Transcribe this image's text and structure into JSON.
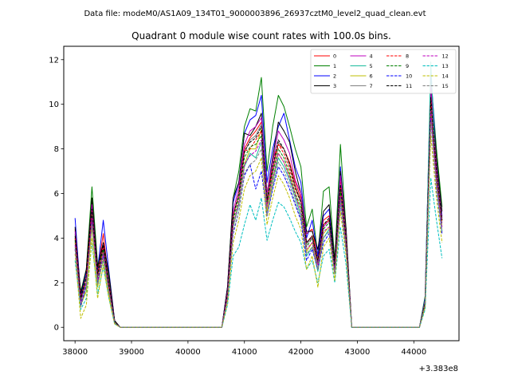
{
  "figure": {
    "suptitle": "Data file: modeM0/AS1A09_134T01_9000003896_26937cztM0_level2_quad_clean.evt"
  },
  "chart_data": {
    "type": "line",
    "title": "Quadrant 0 module wise count rates with 100.0s bins.",
    "xlabel": "",
    "ylabel": "",
    "x_offset_label": "+3.383e8",
    "xlim": [
      37800,
      44800
    ],
    "ylim": [
      -0.6,
      12.6
    ],
    "x_ticks": [
      38000,
      39000,
      40000,
      41000,
      42000,
      43000,
      44000
    ],
    "y_ticks": [
      0,
      2,
      4,
      6,
      8,
      10,
      12
    ],
    "grid": false,
    "legend_position": "top-right",
    "x": [
      38000,
      38100,
      38200,
      38300,
      38400,
      38500,
      38600,
      38700,
      38800,
      38900,
      39000,
      39100,
      39200,
      39300,
      39400,
      39500,
      39600,
      39700,
      39800,
      39900,
      40000,
      40100,
      40200,
      40300,
      40400,
      40500,
      40600,
      40700,
      40800,
      40900,
      41000,
      41100,
      41200,
      41300,
      41400,
      41500,
      41600,
      41700,
      41800,
      41900,
      42000,
      42100,
      42200,
      42300,
      42400,
      42500,
      42600,
      42700,
      42800,
      42900,
      43000,
      43100,
      43200,
      43300,
      43400,
      43500,
      43600,
      43700,
      43800,
      43900,
      44000,
      44100,
      44200,
      44300,
      44400,
      44500
    ],
    "series": [
      {
        "name": "0",
        "color": "#ff0000",
        "dash": false,
        "values": [
          4.4,
          1.5,
          2.0,
          5.8,
          2.5,
          4.2,
          2.0,
          0.3,
          0,
          0,
          0,
          0,
          0,
          0,
          0,
          0,
          0,
          0,
          0,
          0,
          0,
          0,
          0,
          0,
          0,
          0,
          0,
          1.5,
          5.0,
          6.0,
          8.0,
          8.5,
          8.8,
          9.2,
          5.5,
          7.5,
          8.2,
          8.0,
          7.4,
          6.5,
          5.8,
          4.2,
          4.4,
          3.0,
          4.8,
          5.0,
          2.8,
          6.5,
          4.0,
          0,
          0,
          0,
          0,
          0,
          0,
          0,
          0,
          0,
          0,
          0,
          0,
          0,
          1.2,
          10.5,
          7.0,
          4.8
        ]
      },
      {
        "name": "1",
        "color": "#008000",
        "dash": false,
        "values": [
          4.2,
          1.6,
          2.6,
          6.3,
          2.8,
          3.5,
          2.2,
          0.3,
          0,
          0,
          0,
          0,
          0,
          0,
          0,
          0,
          0,
          0,
          0,
          0,
          0,
          0,
          0,
          0,
          0,
          0,
          0,
          1.8,
          5.8,
          7.0,
          9.0,
          9.8,
          9.7,
          11.2,
          7.0,
          9.0,
          10.4,
          9.9,
          9.0,
          8.0,
          7.2,
          4.5,
          5.3,
          3.2,
          6.1,
          6.3,
          3.0,
          8.2,
          4.4,
          0,
          0,
          0,
          0,
          0,
          0,
          0,
          0,
          0,
          0,
          0,
          0,
          0,
          1.4,
          11.2,
          8.0,
          5.4
        ]
      },
      {
        "name": "2",
        "color": "#0000ff",
        "dash": false,
        "values": [
          4.9,
          1.4,
          2.5,
          5.5,
          2.6,
          4.8,
          2.5,
          0.3,
          0,
          0,
          0,
          0,
          0,
          0,
          0,
          0,
          0,
          0,
          0,
          0,
          0,
          0,
          0,
          0,
          0,
          0,
          0,
          1.8,
          5.6,
          6.5,
          8.7,
          9.3,
          9.5,
          10.4,
          6.5,
          8.0,
          9.0,
          9.6,
          8.4,
          7.2,
          6.5,
          4.0,
          4.8,
          3.2,
          5.0,
          5.3,
          2.8,
          7.2,
          4.2,
          0,
          0,
          0,
          0,
          0,
          0,
          0,
          0,
          0,
          0,
          0,
          0,
          0,
          1.3,
          11.5,
          7.5,
          5.0
        ]
      },
      {
        "name": "3",
        "color": "#000000",
        "dash": false,
        "values": [
          4.5,
          1.5,
          2.6,
          5.8,
          2.7,
          3.8,
          2.4,
          0.3,
          0,
          0,
          0,
          0,
          0,
          0,
          0,
          0,
          0,
          0,
          0,
          0,
          0,
          0,
          0,
          0,
          0,
          0,
          0,
          1.8,
          5.8,
          6.5,
          8.7,
          8.6,
          9.0,
          9.6,
          6.0,
          7.6,
          9.2,
          8.8,
          8.3,
          7.0,
          6.0,
          4.3,
          4.3,
          3.5,
          5.2,
          5.5,
          3.0,
          7.0,
          4.4,
          0,
          0,
          0,
          0,
          0,
          0,
          0,
          0,
          0,
          0,
          0,
          0,
          0,
          1.2,
          10.8,
          7.6,
          5.2
        ]
      },
      {
        "name": "4",
        "color": "#bf00bf",
        "dash": false,
        "values": [
          4.3,
          1.3,
          2.0,
          5.5,
          2.3,
          3.7,
          2.0,
          0.25,
          0,
          0,
          0,
          0,
          0,
          0,
          0,
          0,
          0,
          0,
          0,
          0,
          0,
          0,
          0,
          0,
          0,
          0,
          0,
          1.6,
          5.2,
          6.3,
          8.2,
          8.8,
          9.0,
          9.4,
          6.0,
          7.4,
          8.8,
          8.4,
          7.8,
          6.6,
          6.0,
          3.8,
          4.0,
          2.8,
          4.5,
          4.8,
          2.6,
          6.8,
          4.1,
          0,
          0,
          0,
          0,
          0,
          0,
          0,
          0,
          0,
          0,
          0,
          0,
          0,
          1.1,
          10.8,
          7.2,
          4.9
        ]
      },
      {
        "name": "5",
        "color": "#1abc9c",
        "dash": false,
        "values": [
          3.6,
          1.0,
          1.8,
          4.6,
          2.0,
          3.0,
          1.6,
          0.2,
          0,
          0,
          0,
          0,
          0,
          0,
          0,
          0,
          0,
          0,
          0,
          0,
          0,
          0,
          0,
          0,
          0,
          0,
          0,
          1.3,
          4.5,
          5.5,
          7.2,
          7.8,
          7.6,
          8.3,
          5.2,
          6.5,
          7.6,
          7.2,
          6.6,
          5.8,
          5.0,
          3.2,
          3.6,
          2.5,
          4.0,
          4.4,
          2.4,
          5.8,
          3.5,
          0,
          0,
          0,
          0,
          0,
          0,
          0,
          0,
          0,
          0,
          0,
          0,
          0,
          1.0,
          11.9,
          6.4,
          4.3
        ]
      },
      {
        "name": "6",
        "color": "#bfbf00",
        "dash": false,
        "values": [
          3.8,
          1.0,
          1.6,
          4.5,
          1.8,
          3.1,
          1.5,
          0.2,
          0,
          0,
          0,
          0,
          0,
          0,
          0,
          0,
          0,
          0,
          0,
          0,
          0,
          0,
          0,
          0,
          0,
          0,
          0,
          1.3,
          4.6,
          5.6,
          7.3,
          8.0,
          8.0,
          8.9,
          5.2,
          6.6,
          7.8,
          7.4,
          6.8,
          6.0,
          5.2,
          3.4,
          3.8,
          2.6,
          4.2,
          4.5,
          2.4,
          6.0,
          3.6,
          0,
          0,
          0,
          0,
          0,
          0,
          0,
          0,
          0,
          0,
          0,
          0,
          0,
          1.0,
          9.6,
          6.6,
          4.5
        ]
      },
      {
        "name": "7",
        "color": "#808080",
        "dash": false,
        "values": [
          4.0,
          1.2,
          2.0,
          5.0,
          2.2,
          3.4,
          1.8,
          0.25,
          0,
          0,
          0,
          0,
          0,
          0,
          0,
          0,
          0,
          0,
          0,
          0,
          0,
          0,
          0,
          0,
          0,
          0,
          0,
          1.5,
          5.0,
          6.0,
          7.8,
          8.4,
          8.6,
          9.1,
          5.8,
          7.0,
          8.3,
          8.0,
          7.3,
          6.3,
          5.7,
          3.7,
          4.1,
          2.9,
          4.6,
          4.8,
          2.7,
          6.4,
          4.0,
          0,
          0,
          0,
          0,
          0,
          0,
          0,
          0,
          0,
          0,
          0,
          0,
          0,
          1.2,
          10.0,
          7.0,
          4.8
        ]
      },
      {
        "name": "8",
        "color": "#ff0000",
        "dash": true,
        "values": [
          4.0,
          1.3,
          2.3,
          5.2,
          2.3,
          3.6,
          1.9,
          0.25,
          0,
          0,
          0,
          0,
          0,
          0,
          0,
          0,
          0,
          0,
          0,
          0,
          0,
          0,
          0,
          0,
          0,
          0,
          0,
          1.5,
          5.0,
          6.0,
          7.9,
          8.0,
          8.4,
          8.8,
          5.7,
          7.1,
          8.2,
          7.8,
          7.1,
          6.2,
          5.6,
          3.8,
          4.1,
          3.0,
          4.6,
          4.8,
          2.7,
          6.3,
          3.9,
          0,
          0,
          0,
          0,
          0,
          0,
          0,
          0,
          0,
          0,
          0,
          0,
          0,
          1.1,
          10.2,
          6.9,
          4.7
        ]
      },
      {
        "name": "9",
        "color": "#008000",
        "dash": true,
        "values": [
          3.9,
          1.2,
          2.2,
          5.1,
          2.2,
          3.5,
          1.8,
          0.25,
          0,
          0,
          0,
          0,
          0,
          0,
          0,
          0,
          0,
          0,
          0,
          0,
          0,
          0,
          0,
          0,
          0,
          0,
          0,
          1.4,
          4.8,
          5.8,
          7.6,
          8.1,
          8.2,
          8.6,
          5.5,
          6.9,
          8.0,
          7.6,
          6.9,
          6.0,
          5.4,
          3.6,
          4.0,
          2.9,
          4.4,
          4.7,
          2.6,
          6.1,
          3.8,
          0,
          0,
          0,
          0,
          0,
          0,
          0,
          0,
          0,
          0,
          0,
          0,
          0,
          1.1,
          9.8,
          6.7,
          4.6
        ]
      },
      {
        "name": "10",
        "color": "#0000ff",
        "dash": true,
        "values": [
          3.5,
          1.0,
          1.9,
          4.7,
          2.0,
          3.2,
          1.6,
          0.2,
          0,
          0,
          0,
          0,
          0,
          0,
          0,
          0,
          0,
          0,
          0,
          0,
          0,
          0,
          0,
          0,
          0,
          0,
          0,
          1.3,
          4.2,
          5.2,
          6.8,
          7.3,
          6.2,
          7.0,
          5.0,
          6.2,
          7.2,
          6.8,
          6.2,
          5.5,
          4.8,
          3.0,
          3.5,
          2.6,
          3.8,
          4.2,
          2.4,
          5.5,
          3.4,
          0,
          0,
          0,
          0,
          0,
          0,
          0,
          0,
          0,
          0,
          0,
          0,
          0,
          1.0,
          9.3,
          6.2,
          4.2
        ]
      },
      {
        "name": "11",
        "color": "#000000",
        "dash": true,
        "values": [
          4.1,
          1.3,
          2.3,
          5.3,
          2.4,
          3.7,
          1.9,
          0.25,
          0,
          0,
          0,
          0,
          0,
          0,
          0,
          0,
          0,
          0,
          0,
          0,
          0,
          0,
          0,
          0,
          0,
          0,
          0,
          1.5,
          5.0,
          6.0,
          7.9,
          8.3,
          8.5,
          9.0,
          5.7,
          7.2,
          8.4,
          8.0,
          7.3,
          6.3,
          5.6,
          3.8,
          4.1,
          3.0,
          4.6,
          4.9,
          2.7,
          6.4,
          4.0,
          0,
          0,
          0,
          0,
          0,
          0,
          0,
          0,
          0,
          0,
          0,
          0,
          0,
          1.1,
          10.3,
          7.0,
          4.8
        ]
      },
      {
        "name": "12",
        "color": "#bf00bf",
        "dash": true,
        "values": [
          3.7,
          1.1,
          2.0,
          4.9,
          2.1,
          3.3,
          1.7,
          0.2,
          0,
          0,
          0,
          0,
          0,
          0,
          0,
          0,
          0,
          0,
          0,
          0,
          0,
          0,
          0,
          0,
          0,
          0,
          0,
          1.4,
          4.6,
          5.6,
          7.3,
          7.7,
          7.9,
          8.4,
          5.4,
          6.7,
          7.8,
          7.4,
          6.7,
          5.9,
          5.2,
          3.5,
          3.8,
          2.8,
          4.3,
          4.5,
          2.5,
          5.9,
          3.7,
          0,
          0,
          0,
          0,
          0,
          0,
          0,
          0,
          0,
          0,
          0,
          0,
          0,
          1.0,
          9.7,
          6.6,
          4.5
        ]
      },
      {
        "name": "13",
        "color": "#00bfbf",
        "dash": true,
        "values": [
          3.0,
          0.8,
          1.3,
          3.8,
          1.5,
          2.7,
          1.3,
          0.15,
          0,
          0,
          0,
          0,
          0,
          0,
          0,
          0,
          0,
          0,
          0,
          0,
          0,
          0,
          0,
          0,
          0,
          0,
          0,
          1.0,
          3.2,
          3.6,
          4.6,
          5.5,
          4.8,
          5.8,
          3.9,
          4.8,
          5.6,
          5.4,
          4.9,
          4.3,
          3.8,
          2.6,
          3.0,
          2.0,
          3.2,
          3.5,
          2.0,
          4.5,
          2.8,
          0,
          0,
          0,
          0,
          0,
          0,
          0,
          0,
          0,
          0,
          0,
          0,
          0,
          0.8,
          6.7,
          4.8,
          3.1
        ]
      },
      {
        "name": "14",
        "color": "#bfbf00",
        "dash": true,
        "values": [
          3.3,
          0.4,
          1.0,
          4.0,
          1.3,
          2.8,
          1.3,
          0.15,
          0,
          0,
          0,
          0,
          0,
          0,
          0,
          0,
          0,
          0,
          0,
          0,
          0,
          0,
          0,
          0,
          0,
          0,
          0,
          1.1,
          3.8,
          4.8,
          6.2,
          6.8,
          7.0,
          7.6,
          4.6,
          5.8,
          6.8,
          6.4,
          5.8,
          5.0,
          4.4,
          2.6,
          3.2,
          1.8,
          3.6,
          4.0,
          2.1,
          5.2,
          3.2,
          0,
          0,
          0,
          0,
          0,
          0,
          0,
          0,
          0,
          0,
          0,
          0,
          0,
          0.9,
          8.6,
          5.8,
          3.8
        ]
      },
      {
        "name": "15",
        "color": "#808080",
        "dash": true,
        "values": [
          3.5,
          0.9,
          1.8,
          4.6,
          1.9,
          3.1,
          1.6,
          0.2,
          0,
          0,
          0,
          0,
          0,
          0,
          0,
          0,
          0,
          0,
          0,
          0,
          0,
          0,
          0,
          0,
          0,
          0,
          0,
          1.3,
          4.3,
          5.2,
          6.9,
          7.3,
          7.5,
          8.0,
          5.0,
          6.3,
          7.4,
          7.0,
          6.4,
          5.6,
          4.9,
          3.3,
          3.6,
          2.6,
          4.0,
          4.3,
          2.4,
          5.6,
          3.5,
          0,
          0,
          0,
          0,
          0,
          0,
          0,
          0,
          0,
          0,
          0,
          0,
          0,
          1.0,
          9.2,
          6.3,
          4.3
        ]
      }
    ]
  }
}
